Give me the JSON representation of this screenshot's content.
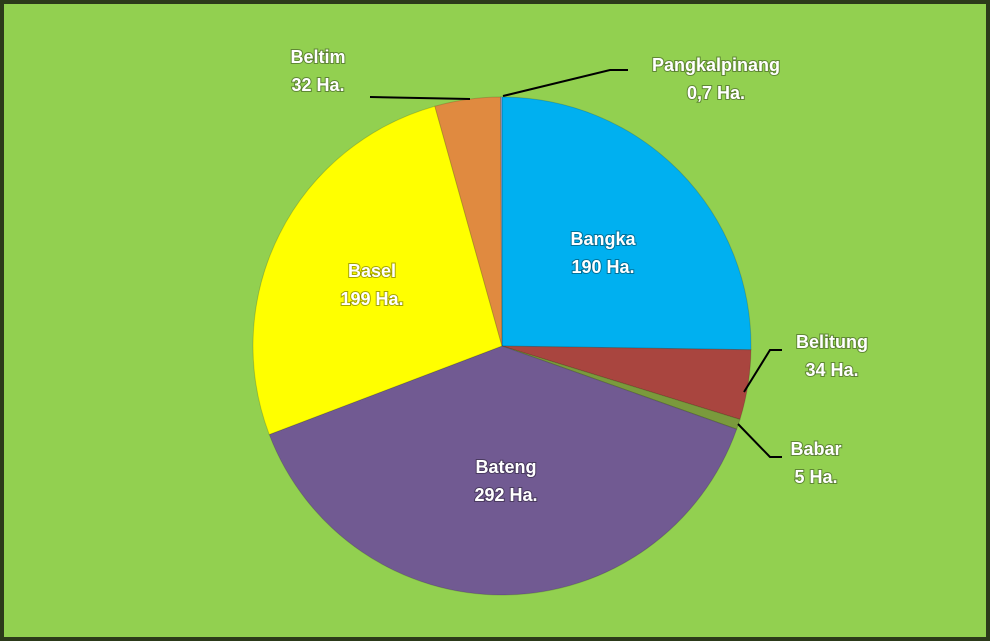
{
  "chart_data": {
    "type": "pie",
    "categories": [
      "Bangka",
      "Belitung",
      "Babar",
      "Bateng",
      "Basel",
      "Beltim",
      "Pangkalpinang"
    ],
    "values": [
      190,
      34,
      5,
      292,
      199,
      32,
      0.7
    ],
    "value_labels": [
      "190 Ha.",
      "34 Ha.",
      "5 Ha.",
      "292 Ha.",
      "199 Ha.",
      "32 Ha.",
      "0,7 Ha."
    ],
    "colors": [
      "#00b0f0",
      "#a9453f",
      "#7a9a3c",
      "#715a92",
      "#ffff00",
      "#e08a40",
      "#8aa0c8"
    ],
    "label_colors": [
      "#ffffff",
      "#ffffff",
      "#ffffff",
      "#ffffff",
      "#ff0000",
      "#ffffff",
      "#ffffff"
    ]
  }
}
